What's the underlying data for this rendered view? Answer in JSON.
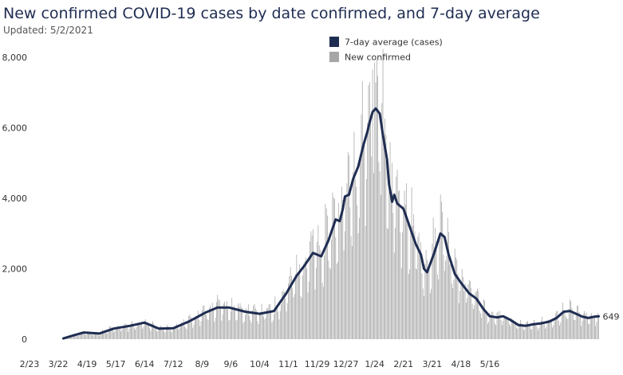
{
  "chart_data": {
    "type": "bar+line",
    "title": "New confirmed COVID-19 cases by date confirmed, and 7-day average",
    "subtitle": "Updated: 5/2/2021",
    "xlabel": "",
    "ylabel": "",
    "ylim": [
      0,
      8000
    ],
    "y_ticks": [
      "0",
      "2,000",
      "4,000",
      "6,000",
      "8,000"
    ],
    "x_ticks": [
      "2/23",
      "3/22",
      "4/19",
      "5/17",
      "6/14",
      "7/12",
      "8/9",
      "9/6",
      "10/4",
      "11/1",
      "11/29",
      "12/27",
      "1/24",
      "2/21",
      "3/21",
      "4/18",
      "5/16"
    ],
    "legend": {
      "position": "top",
      "entries": [
        {
          "label": "7-day average (cases)",
          "color": "#1f2d52"
        },
        {
          "label": "New confirmed",
          "color": "#a6a6a6"
        }
      ]
    },
    "grid": false,
    "end_label": "649",
    "series": [
      {
        "name": "7-day average (cases)",
        "kind": "line",
        "color": "#1f2d52",
        "points": [
          [
            5,
            20
          ],
          [
            14,
            100
          ],
          [
            25,
            190
          ],
          [
            40,
            160
          ],
          [
            54,
            300
          ],
          [
            70,
            380
          ],
          [
            84,
            470
          ],
          [
            98,
            300
          ],
          [
            112,
            310
          ],
          [
            127,
            500
          ],
          [
            143,
            750
          ],
          [
            155,
            900
          ],
          [
            166,
            900
          ],
          [
            182,
            780
          ],
          [
            196,
            720
          ],
          [
            210,
            800
          ],
          [
            222,
            1300
          ],
          [
            232,
            1800
          ],
          [
            240,
            2100
          ],
          [
            248,
            2450
          ],
          [
            256,
            2350
          ],
          [
            263,
            2800
          ],
          [
            270,
            3400
          ],
          [
            274,
            3350
          ],
          [
            277,
            3700
          ],
          [
            279,
            4050
          ],
          [
            283,
            4100
          ],
          [
            287,
            4550
          ],
          [
            292,
            4900
          ],
          [
            297,
            5500
          ],
          [
            301,
            5900
          ],
          [
            303,
            6150
          ],
          [
            306,
            6450
          ],
          [
            309,
            6550
          ],
          [
            313,
            6400
          ],
          [
            316,
            5800
          ],
          [
            320,
            5100
          ],
          [
            322,
            4400
          ],
          [
            325,
            3900
          ],
          [
            327,
            4100
          ],
          [
            330,
            3850
          ],
          [
            336,
            3700
          ],
          [
            342,
            3200
          ],
          [
            348,
            2700
          ],
          [
            353,
            2400
          ],
          [
            356,
            2000
          ],
          [
            359,
            1900
          ],
          [
            366,
            2450
          ],
          [
            372,
            3000
          ],
          [
            376,
            2900
          ],
          [
            380,
            2400
          ],
          [
            386,
            1850
          ],
          [
            392,
            1600
          ],
          [
            400,
            1300
          ],
          [
            407,
            1150
          ],
          [
            414,
            850
          ],
          [
            420,
            650
          ],
          [
            427,
            620
          ],
          [
            433,
            650
          ],
          [
            440,
            550
          ],
          [
            448,
            400
          ],
          [
            455,
            380
          ],
          [
            462,
            420
          ],
          [
            470,
            450
          ],
          [
            478,
            500
          ],
          [
            485,
            600
          ],
          [
            492,
            780
          ],
          [
            498,
            800
          ],
          [
            504,
            720
          ],
          [
            510,
            640
          ],
          [
            516,
            600
          ],
          [
            522,
            640
          ],
          [
            526,
            649
          ]
        ]
      },
      {
        "name": "New confirmed",
        "kind": "bar",
        "color": "#a6a6a6",
        "points": [
          [
            5,
            20
          ],
          [
            14,
            100
          ],
          [
            25,
            190
          ],
          [
            40,
            160
          ],
          [
            54,
            300
          ],
          [
            70,
            380
          ],
          [
            84,
            470
          ],
          [
            98,
            300
          ],
          [
            112,
            310
          ],
          [
            127,
            500
          ],
          [
            143,
            750
          ],
          [
            155,
            900
          ],
          [
            166,
            900
          ],
          [
            182,
            780
          ],
          [
            196,
            720
          ],
          [
            210,
            800
          ],
          [
            222,
            1300
          ],
          [
            232,
            1800
          ],
          [
            240,
            2100
          ],
          [
            248,
            2450
          ],
          [
            256,
            2350
          ],
          [
            263,
            2800
          ],
          [
            270,
            3400
          ],
          [
            274,
            3350
          ],
          [
            277,
            3700
          ],
          [
            279,
            4050
          ],
          [
            283,
            4100
          ],
          [
            287,
            4550
          ],
          [
            292,
            4900
          ],
          [
            297,
            5500
          ],
          [
            301,
            5900
          ],
          [
            303,
            6150
          ],
          [
            306,
            6450
          ],
          [
            309,
            6550
          ],
          [
            313,
            6400
          ],
          [
            316,
            5800
          ],
          [
            320,
            5100
          ],
          [
            322,
            4400
          ],
          [
            325,
            3900
          ],
          [
            327,
            4100
          ],
          [
            330,
            3850
          ],
          [
            336,
            3700
          ],
          [
            342,
            3200
          ],
          [
            348,
            2700
          ],
          [
            353,
            2400
          ],
          [
            356,
            2000
          ],
          [
            359,
            1900
          ],
          [
            366,
            2450
          ],
          [
            372,
            3000
          ],
          [
            376,
            2900
          ],
          [
            380,
            2400
          ],
          [
            386,
            1850
          ],
          [
            392,
            1600
          ],
          [
            400,
            1300
          ],
          [
            407,
            1150
          ],
          [
            414,
            850
          ],
          [
            420,
            650
          ],
          [
            427,
            620
          ],
          [
            433,
            650
          ],
          [
            440,
            550
          ],
          [
            448,
            400
          ],
          [
            455,
            380
          ],
          [
            462,
            420
          ],
          [
            470,
            450
          ],
          [
            478,
            500
          ],
          [
            485,
            600
          ],
          [
            492,
            780
          ],
          [
            498,
            800
          ],
          [
            504,
            720
          ],
          [
            510,
            640
          ],
          [
            516,
            600
          ],
          [
            522,
            640
          ],
          [
            526,
            649
          ]
        ]
      }
    ]
  }
}
